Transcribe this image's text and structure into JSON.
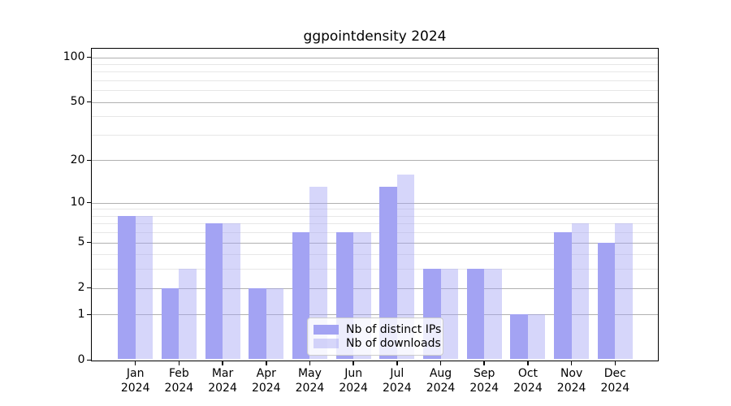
{
  "chart_data": {
    "type": "bar",
    "title": "ggpointdensity 2024",
    "categories": [
      "Jan",
      "Feb",
      "Mar",
      "Apr",
      "May",
      "Jun",
      "Jul",
      "Aug",
      "Sep",
      "Oct",
      "Nov",
      "Dec"
    ],
    "x_year_label": "2024",
    "series": [
      {
        "name": "Nb of distinct IPs",
        "values": [
          8,
          2,
          7,
          2,
          6,
          6,
          13,
          3,
          3,
          1,
          6,
          5
        ]
      },
      {
        "name": "Nb of downloads",
        "values": [
          8,
          3,
          7,
          2,
          13,
          6,
          16,
          3,
          3,
          1,
          7,
          7
        ]
      }
    ],
    "y_scale": "log1p",
    "ylim": [
      0,
      115
    ],
    "y_major_ticks": [
      0,
      1,
      2,
      5,
      10,
      20,
      50,
      100
    ],
    "y_minor_ticks": [
      3,
      4,
      6,
      7,
      8,
      9,
      30,
      40,
      60,
      70,
      80,
      90
    ],
    "grid": true,
    "legend_position": "lower center",
    "colors": {
      "distinct_ips": "#a3a3f3",
      "downloads": "#d6d6f5",
      "downloads_rgba": "rgba(163,163,243,0.45)",
      "major_grid": "#b0b0b0",
      "minor_grid": "#e7e7e7"
    }
  }
}
